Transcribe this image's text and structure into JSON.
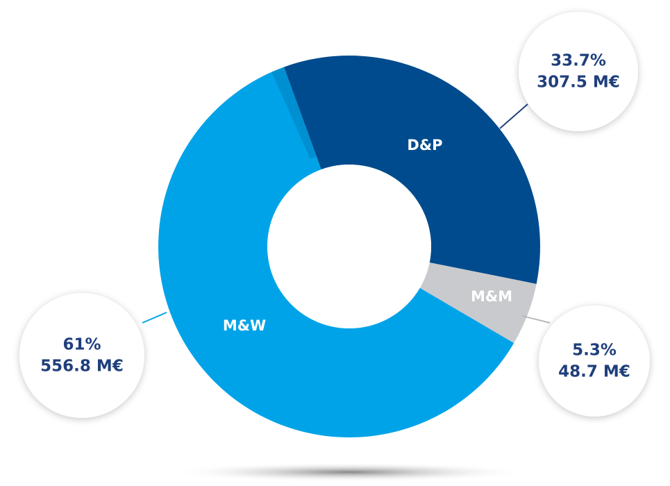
{
  "chart_data": {
    "type": "donut",
    "categories": [
      "D&P",
      "M&M",
      "M&W"
    ],
    "values": [
      33.7,
      5.3,
      61
    ],
    "value_labels": [
      "33.7%",
      "5.3%",
      "61%"
    ],
    "amounts": [
      307.5,
      48.7,
      556.8
    ],
    "amount_labels": [
      "307.5 M€",
      "48.7 M€",
      "556.8 M€"
    ],
    "colors": [
      "#004b8d",
      "#c9cacd",
      "#00a3e8"
    ]
  }
}
